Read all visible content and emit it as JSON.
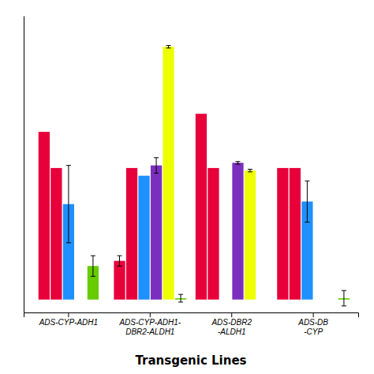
{
  "chart_data": {
    "type": "bar",
    "xlabel": "Transgenic Lines",
    "categories": [
      "ADS-CYP-ADH1",
      "ADS-CYP-ADH1-\nDBR2-ALDH1",
      "ADS-DBR2\n-ALDH1",
      "ADS-DB\n-CYP"
    ],
    "series": [
      {
        "color": "#E8003A",
        "values": [
          6.5,
          1.5,
          7.2,
          5.1
        ],
        "errors": [
          0.0,
          0.2,
          0.0,
          0.0
        ]
      },
      {
        "color": "#E8003A",
        "values": [
          5.1,
          5.1,
          5.1,
          5.1
        ],
        "errors": [
          0.0,
          0.0,
          0.0,
          0.0
        ]
      },
      {
        "color": "#1E90FF",
        "values": [
          3.7,
          4.8,
          0.0,
          3.8
        ],
        "errors": [
          1.5,
          0.0,
          0.0,
          0.8
        ]
      },
      {
        "color": "#7B2FBE",
        "values": [
          0.0,
          5.2,
          5.3,
          0.0
        ],
        "errors": [
          0.0,
          0.3,
          0.05,
          0.0
        ]
      },
      {
        "color": "#EEFF00",
        "values": [
          null,
          9.8,
          5.0,
          0.0
        ],
        "errors": [
          null,
          0.05,
          0.05,
          0.0
        ]
      },
      {
        "color": "#66CC00",
        "values": [
          1.3,
          0.05,
          0.0,
          0.05
        ],
        "errors": [
          0.4,
          0.15,
          0.0,
          0.3
        ]
      }
    ],
    "ylim": [
      -0.5,
      11
    ],
    "tick_labels": "x",
    "grid": false
  }
}
